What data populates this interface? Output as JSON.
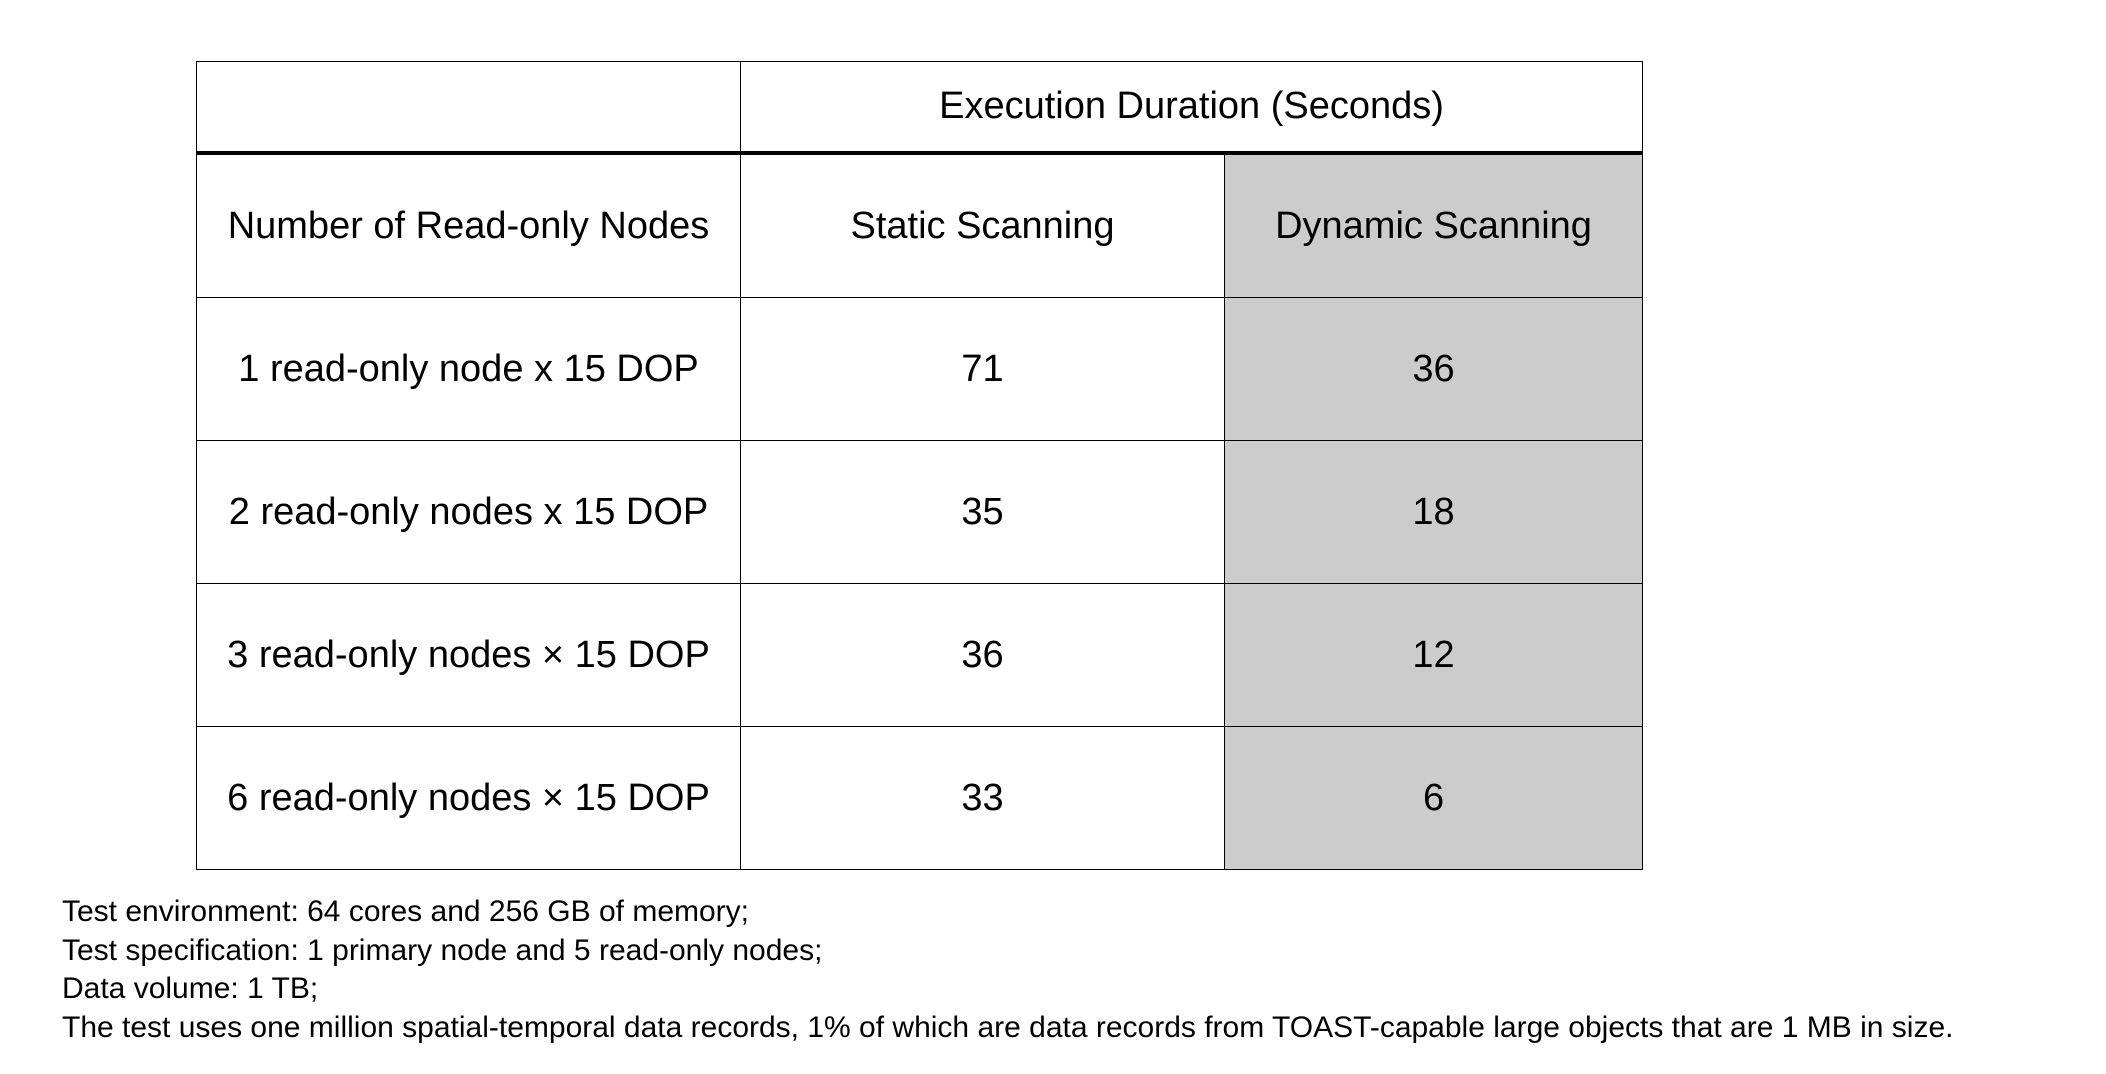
{
  "chart_data": {
    "type": "table",
    "title": "",
    "group_header": "Execution Duration (Seconds)",
    "columns": [
      "Number of Read-only Nodes",
      "Static Scanning",
      "Dynamic Scanning"
    ],
    "rows": [
      [
        "1 read-only node x 15 DOP",
        "71",
        "36"
      ],
      [
        "2 read-only nodes x 15 DOP",
        "35",
        "18"
      ],
      [
        "3 read-only nodes × 15 DOP",
        "36",
        "12"
      ],
      [
        "6 read-only nodes × 15 DOP",
        "33",
        "6"
      ]
    ],
    "highlight_column_color": "#cccccc"
  },
  "notes": [
    "Test environment: 64 cores and 256 GB of memory;",
    "Test specification: 1 primary node and 5 read-only nodes;",
    "Data volume: 1 TB;",
    "The test uses one million spatial-temporal data records, 1% of which are data records from TOAST-capable large objects that are 1 MB in size."
  ]
}
